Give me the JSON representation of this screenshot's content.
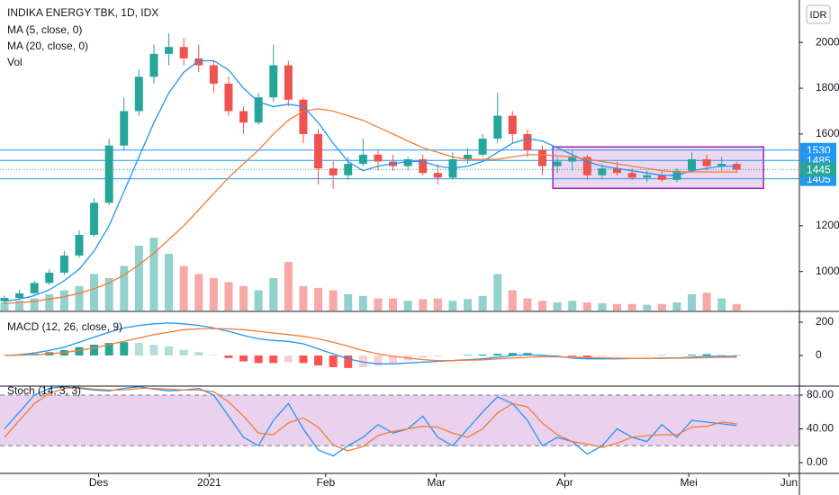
{
  "chart_data": {
    "type": "candlestick",
    "title": "INDIKA ENERGY TBK, 1D, IDX",
    "ma5_label": "MA (5, close, 0)",
    "ma20_label": "MA (20, close, 0)",
    "volume_label": "Vol",
    "currency": "IDR",
    "up_color": "#26a69a",
    "down_color": "#ef5350",
    "ma5_color": "#2196f3",
    "ma20_color": "#f57c36",
    "open": [
      870,
      885,
      905,
      950,
      995,
      1070,
      1160,
      1300,
      1550,
      1700,
      1850,
      1950,
      1980,
      1930,
      1900,
      1820,
      1700,
      1650,
      1760,
      1900,
      1750,
      1600,
      1450,
      1420,
      1470,
      1510,
      1480,
      1460,
      1490,
      1430,
      1410,
      1490,
      1510,
      1580,
      1680,
      1600,
      1530,
      1460,
      1480,
      1500,
      1420,
      1450,
      1430,
      1410,
      1420,
      1400,
      1440,
      1490,
      1460,
      1470
    ],
    "high": [
      895,
      920,
      960,
      1010,
      1090,
      1180,
      1320,
      1580,
      1760,
      1880,
      1990,
      2040,
      2020,
      1990,
      1920,
      1850,
      1720,
      1780,
      1990,
      1920,
      1760,
      1620,
      1480,
      1500,
      1580,
      1530,
      1510,
      1500,
      1510,
      1470,
      1520,
      1540,
      1600,
      1780,
      1700,
      1620,
      1550,
      1500,
      1530,
      1510,
      1470,
      1480,
      1450,
      1440,
      1440,
      1450,
      1520,
      1510,
      1500,
      1480
    ],
    "low": [
      860,
      875,
      900,
      940,
      985,
      1060,
      1150,
      1290,
      1530,
      1680,
      1820,
      1900,
      1900,
      1870,
      1780,
      1680,
      1600,
      1640,
      1740,
      1720,
      1560,
      1380,
      1360,
      1400,
      1460,
      1440,
      1440,
      1440,
      1420,
      1380,
      1400,
      1470,
      1500,
      1560,
      1560,
      1500,
      1420,
      1430,
      1440,
      1400,
      1400,
      1420,
      1400,
      1390,
      1390,
      1390,
      1430,
      1440,
      1440,
      1430
    ],
    "close": [
      885,
      905,
      950,
      995,
      1070,
      1160,
      1300,
      1550,
      1700,
      1850,
      1950,
      1980,
      1930,
      1900,
      1820,
      1700,
      1650,
      1760,
      1900,
      1750,
      1600,
      1450,
      1420,
      1470,
      1510,
      1480,
      1460,
      1490,
      1430,
      1410,
      1490,
      1510,
      1580,
      1680,
      1600,
      1530,
      1460,
      1480,
      1500,
      1420,
      1450,
      1430,
      1410,
      1420,
      1400,
      1440,
      1490,
      1460,
      1470,
      1445
    ],
    "volume": [
      10,
      12,
      15,
      20,
      25,
      30,
      45,
      40,
      55,
      80,
      90,
      70,
      55,
      45,
      40,
      35,
      30,
      25,
      40,
      60,
      30,
      28,
      25,
      20,
      18,
      15,
      15,
      12,
      14,
      15,
      12,
      14,
      18,
      45,
      25,
      15,
      12,
      10,
      12,
      10,
      9,
      8,
      8,
      7,
      8,
      10,
      20,
      22,
      15,
      8
    ],
    "vlim": [
      0,
      100
    ],
    "ma5": [
      870,
      880,
      895,
      920,
      960,
      1010,
      1090,
      1200,
      1350,
      1500,
      1650,
      1780,
      1870,
      1920,
      1920,
      1880,
      1800,
      1740,
      1720,
      1730,
      1720,
      1650,
      1560,
      1480,
      1440,
      1460,
      1470,
      1480,
      1480,
      1460,
      1450,
      1460,
      1480,
      1520,
      1560,
      1580,
      1570,
      1540,
      1510,
      1480,
      1460,
      1450,
      1440,
      1430,
      1420,
      1420,
      1440,
      1450,
      1460,
      1460
    ],
    "ma20": [
      860,
      865,
      870,
      880,
      890,
      905,
      925,
      950,
      985,
      1030,
      1080,
      1140,
      1200,
      1270,
      1340,
      1410,
      1470,
      1530,
      1600,
      1660,
      1700,
      1710,
      1700,
      1680,
      1660,
      1630,
      1600,
      1570,
      1540,
      1520,
      1500,
      1490,
      1490,
      1490,
      1500,
      1510,
      1510,
      1505,
      1500,
      1490,
      1480,
      1470,
      1460,
      1450,
      1440,
      1435,
      1435,
      1435,
      1435,
      1435
    ],
    "xlim": [
      -0.3,
      53.2
    ],
    "xticks": [
      {
        "value": 6.3,
        "label": "Des"
      },
      {
        "value": 13.7,
        "label": "2021"
      },
      {
        "value": 21.5,
        "label": "Feb"
      },
      {
        "value": 28.9,
        "label": "Mar"
      },
      {
        "value": 37.5,
        "label": "Apr"
      },
      {
        "value": 45.8,
        "label": "Mei"
      },
      {
        "value": 52.5,
        "label": "Jun"
      }
    ],
    "ylim": [
      830,
      2185
    ],
    "yticks": [
      1000,
      1200,
      1600,
      1800,
      2000
    ],
    "price_lines": [
      1530,
      1485,
      1405
    ],
    "price_line_color": "#2196f3",
    "last_price": 1445,
    "range_box": {
      "x": [
        36.7,
        50.8
      ],
      "y": [
        1363,
        1544
      ],
      "color": "#9c27b0"
    },
    "macd": {
      "title": "MACD (12, 26, close, 9)",
      "macd": [
        0,
        5,
        15,
        30,
        50,
        80,
        110,
        140,
        165,
        180,
        190,
        195,
        190,
        180,
        165,
        145,
        120,
        100,
        90,
        85,
        70,
        40,
        10,
        -20,
        -40,
        -50,
        -50,
        -45,
        -40,
        -35,
        -30,
        -25,
        -20,
        -10,
        0,
        5,
        0,
        -5,
        -15,
        -20,
        -20,
        -20,
        -18,
        -18,
        -15,
        -15,
        -10,
        -5,
        -5,
        -5
      ],
      "signal": [
        0,
        2,
        5,
        10,
        18,
        30,
        45,
        65,
        85,
        105,
        125,
        140,
        155,
        160,
        162,
        160,
        155,
        145,
        135,
        125,
        115,
        100,
        80,
        55,
        30,
        10,
        -5,
        -15,
        -25,
        -30,
        -30,
        -28,
        -26,
        -20,
        -15,
        -10,
        -8,
        -8,
        -10,
        -12,
        -14,
        -16,
        -17,
        -17,
        -17,
        -16,
        -15,
        -13,
        -11,
        -10
      ],
      "histogram": [
        0,
        3,
        10,
        20,
        32,
        50,
        65,
        75,
        80,
        75,
        65,
        55,
        35,
        20,
        3,
        -15,
        -35,
        -45,
        -45,
        -40,
        -45,
        -60,
        -70,
        -75,
        -70,
        -60,
        -45,
        -30,
        -15,
        -5,
        0,
        3,
        6,
        10,
        15,
        15,
        8,
        3,
        -5,
        -8,
        -6,
        -4,
        -1,
        -1,
        2,
        1,
        5,
        8,
        6,
        5
      ],
      "ylim": [
        -178,
        259
      ],
      "yticks": [
        0,
        200
      ]
    },
    "stoch": {
      "title": "Stoch (14, 3, 3)",
      "k": [
        40,
        60,
        80,
        88,
        90,
        88,
        86,
        85,
        88,
        90,
        87,
        85,
        86,
        88,
        80,
        55,
        30,
        20,
        50,
        70,
        40,
        15,
        8,
        20,
        30,
        45,
        35,
        40,
        55,
        30,
        20,
        40,
        60,
        78,
        70,
        50,
        20,
        30,
        25,
        10,
        20,
        40,
        30,
        25,
        45,
        30,
        50,
        48,
        46,
        44
      ],
      "d": [
        30,
        50,
        70,
        82,
        88,
        89,
        87,
        86,
        86,
        88,
        88,
        87,
        86,
        86,
        84,
        72,
        55,
        35,
        33,
        47,
        53,
        42,
        21,
        14,
        19,
        32,
        37,
        40,
        43,
        42,
        35,
        30,
        40,
        59,
        70,
        66,
        47,
        33,
        25,
        22,
        18,
        23,
        30,
        32,
        33,
        33,
        42,
        43,
        48,
        46
      ],
      "band": [
        20,
        80
      ],
      "ylim": [
        -11.7,
        89.6
      ],
      "yticks": [
        {
          "value": 0,
          "label": "0.00"
        },
        {
          "value": 40,
          "label": "40.00"
        },
        {
          "value": 80,
          "label": "80.00"
        }
      ]
    }
  }
}
